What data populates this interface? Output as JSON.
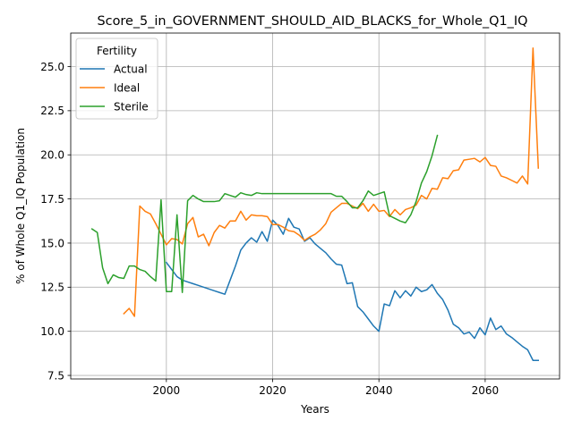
{
  "chart_data": {
    "type": "line",
    "title": "Score_5_in_GOVERNMENT_SHOULD_AID_BLACKS_for_Whole_Q1_IQ",
    "xlabel": "Years",
    "ylabel": "% of Whole Q1_IQ Population",
    "xlim": [
      1982,
      2074
    ],
    "ylim": [
      7.3,
      26.9
    ],
    "xticks": [
      2000,
      2020,
      2040,
      2060
    ],
    "yticks": [
      7.5,
      10.0,
      12.5,
      15.0,
      17.5,
      20.0,
      22.5,
      25.0
    ],
    "ytick_labels": [
      "7.5",
      "10.0",
      "12.5",
      "15.0",
      "17.5",
      "20.0",
      "22.5",
      "25.0"
    ],
    "grid": true,
    "legend": {
      "title": "Fertility",
      "position": "top-left"
    },
    "series": [
      {
        "name": "Actual",
        "color": "#1f77b4",
        "x": [
          2000,
          2001,
          2002,
          2003,
          2004,
          2005,
          2006,
          2007,
          2008,
          2009,
          2010,
          2011,
          2012,
          2013,
          2014,
          2015,
          2016,
          2017,
          2018,
          2019,
          2020,
          2021,
          2022,
          2023,
          2024,
          2025,
          2026,
          2027,
          2028,
          2029,
          2030,
          2031,
          2032,
          2033,
          2034,
          2035,
          2036,
          2037,
          2038,
          2039,
          2040,
          2041,
          2042,
          2043,
          2044,
          2045,
          2046,
          2047,
          2048,
          2049,
          2050,
          2051,
          2052,
          2053,
          2054,
          2055,
          2056,
          2057,
          2058,
          2059,
          2060,
          2061,
          2062,
          2063,
          2064,
          2065,
          2066,
          2067,
          2068,
          2069,
          2070
        ],
        "y": [
          13.9,
          13.5,
          13.1,
          12.9,
          12.8,
          12.7,
          12.6,
          12.5,
          12.4,
          12.3,
          12.2,
          12.1,
          12.9,
          13.7,
          14.6,
          15.0,
          15.3,
          15.05,
          15.65,
          15.1,
          16.3,
          16.0,
          15.5,
          16.4,
          15.9,
          15.8,
          15.1,
          15.3,
          14.95,
          14.7,
          14.45,
          14.1,
          13.8,
          13.75,
          12.7,
          12.75,
          11.4,
          11.1,
          10.7,
          10.3,
          10.0,
          11.55,
          11.45,
          12.3,
          11.9,
          12.3,
          12.0,
          12.5,
          12.25,
          12.35,
          12.65,
          12.15,
          11.8,
          11.2,
          10.4,
          10.2,
          9.85,
          9.95,
          9.6,
          10.2,
          9.8,
          10.75,
          10.1,
          10.3,
          9.85,
          9.65,
          9.4,
          9.15,
          8.95,
          8.35,
          8.35
        ]
      },
      {
        "name": "Ideal",
        "color": "#ff7f0e",
        "x": [
          1992,
          1993,
          1994,
          1995,
          1996,
          1997,
          1998,
          1999,
          2000,
          2001,
          2002,
          2003,
          2004,
          2005,
          2006,
          2007,
          2008,
          2009,
          2010,
          2011,
          2012,
          2013,
          2014,
          2015,
          2016,
          2017,
          2018,
          2019,
          2020,
          2021,
          2022,
          2023,
          2024,
          2025,
          2026,
          2027,
          2028,
          2029,
          2030,
          2031,
          2032,
          2033,
          2034,
          2035,
          2036,
          2037,
          2038,
          2039,
          2040,
          2041,
          2042,
          2043,
          2044,
          2045,
          2046,
          2047,
          2048,
          2049,
          2050,
          2051,
          2052,
          2053,
          2054,
          2055,
          2056,
          2057,
          2058,
          2059,
          2060,
          2061,
          2062,
          2063,
          2064,
          2065,
          2066,
          2067,
          2068,
          2069,
          2070
        ],
        "y": [
          11.0,
          11.3,
          10.85,
          17.1,
          16.8,
          16.65,
          16.1,
          15.5,
          14.9,
          15.25,
          15.2,
          14.95,
          16.1,
          16.45,
          15.35,
          15.5,
          14.85,
          15.6,
          16.0,
          15.85,
          16.25,
          16.25,
          16.8,
          16.3,
          16.6,
          16.55,
          16.55,
          16.5,
          16.05,
          16.05,
          15.9,
          15.7,
          15.65,
          15.45,
          15.15,
          15.35,
          15.5,
          15.75,
          16.1,
          16.75,
          17.0,
          17.25,
          17.25,
          17.1,
          16.95,
          17.25,
          16.8,
          17.2,
          16.8,
          16.85,
          16.5,
          16.9,
          16.6,
          16.9,
          17.0,
          17.15,
          17.7,
          17.5,
          18.1,
          18.05,
          18.7,
          18.65,
          19.1,
          19.15,
          19.7,
          19.75,
          19.8,
          19.6,
          19.85,
          19.4,
          19.35,
          18.8,
          18.7,
          18.55,
          18.4,
          18.8,
          18.35,
          26.05,
          19.25
        ]
      },
      {
        "name": "Sterile",
        "color": "#2ca02c",
        "x": [
          1986,
          1987,
          1988,
          1989,
          1990,
          1991,
          1992,
          1993,
          1994,
          1995,
          1996,
          1997,
          1998,
          1999,
          2000,
          2001,
          2002,
          2003,
          2004,
          2005,
          2006,
          2007,
          2008,
          2009,
          2010,
          2011,
          2012,
          2013,
          2014,
          2015,
          2016,
          2017,
          2018,
          2019,
          2020,
          2021,
          2022,
          2023,
          2024,
          2025,
          2026,
          2027,
          2028,
          2029,
          2030,
          2031,
          2032,
          2033,
          2034,
          2035,
          2036,
          2037,
          2038,
          2039,
          2040,
          2041,
          2042,
          2043,
          2044,
          2045,
          2046,
          2047,
          2048,
          2049,
          2050,
          2051
        ],
        "y": [
          15.8,
          15.6,
          13.6,
          12.7,
          13.2,
          13.05,
          13.0,
          13.7,
          13.7,
          13.5,
          13.4,
          13.1,
          12.85,
          17.45,
          12.25,
          12.25,
          16.6,
          12.2,
          17.4,
          17.7,
          17.5,
          17.35,
          17.35,
          17.35,
          17.4,
          17.8,
          17.7,
          17.6,
          17.85,
          17.75,
          17.7,
          17.85,
          17.8,
          17.8,
          17.8,
          17.8,
          17.8,
          17.8,
          17.8,
          17.8,
          17.8,
          17.8,
          17.8,
          17.8,
          17.8,
          17.8,
          17.65,
          17.65,
          17.35,
          17.0,
          17.0,
          17.4,
          17.95,
          17.7,
          17.8,
          17.9,
          16.55,
          16.4,
          16.25,
          16.15,
          16.6,
          17.35,
          18.4,
          19.05,
          19.95,
          21.1
        ]
      }
    ]
  }
}
